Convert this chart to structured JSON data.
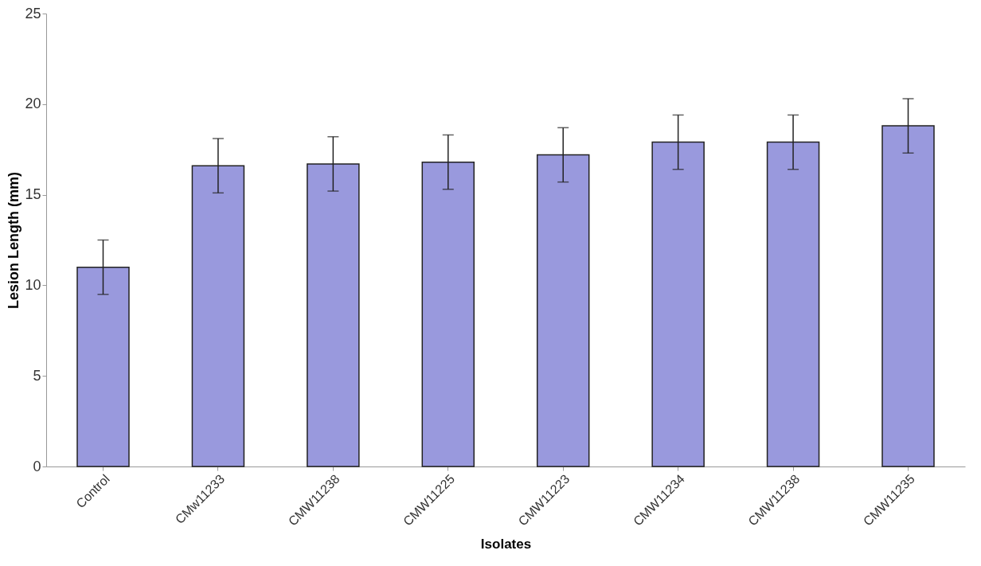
{
  "chart_data": {
    "type": "bar",
    "xlabel": "Isolates",
    "ylabel": "Lesion Length (mm)",
    "categories": [
      "Control",
      "CMw11233",
      "CMW11238",
      "CMW11225",
      "CMW11223",
      "CMW11234",
      "CMW11238",
      "CMW11235"
    ],
    "values": [
      11.0,
      16.6,
      16.7,
      16.8,
      17.2,
      17.9,
      17.9,
      18.8
    ],
    "errors": [
      1.5,
      1.5,
      1.5,
      1.5,
      1.5,
      1.5,
      1.5,
      1.5
    ],
    "color": "#9999dd",
    "ylim": [
      0,
      25
    ],
    "yticks": [
      0,
      5,
      10,
      15,
      20,
      25
    ],
    "grid": false
  }
}
